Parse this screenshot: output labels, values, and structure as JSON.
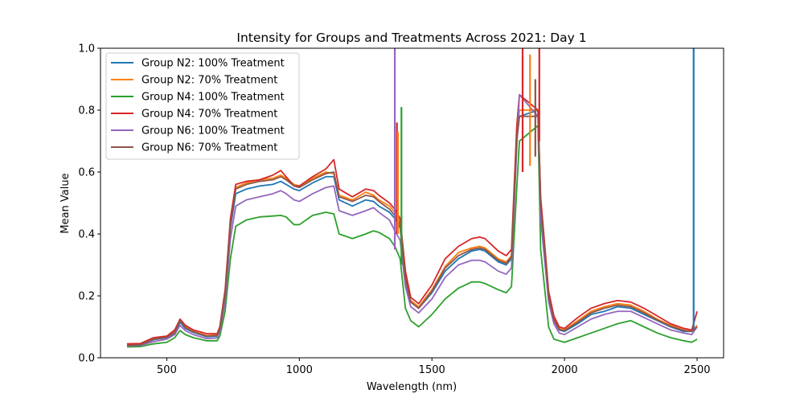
{
  "chart_data": {
    "type": "line",
    "title": "Intensity for Groups and Treatments Across 2021: Day 1",
    "xlabel": "Wavelength (nm)",
    "ylabel": "Mean Value",
    "xlim": [
      250,
      2600
    ],
    "ylim": [
      0,
      1.0
    ],
    "xticks": [
      500,
      1000,
      1500,
      2000,
      2500
    ],
    "xtick_labels": [
      "500",
      "1000",
      "1500",
      "2000",
      "2500"
    ],
    "yticks": [
      0.0,
      0.2,
      0.4,
      0.6,
      0.8,
      1.0
    ],
    "ytick_labels": [
      "0.0",
      "0.2",
      "0.4",
      "0.6",
      "0.8",
      "1.0"
    ],
    "grid": false,
    "legend_position": "top-left",
    "x": [
      350,
      400,
      450,
      500,
      530,
      550,
      570,
      600,
      650,
      690,
      700,
      720,
      740,
      760,
      800,
      850,
      900,
      930,
      950,
      980,
      1000,
      1050,
      1100,
      1130,
      1150,
      1200,
      1250,
      1280,
      1300,
      1340,
      1360,
      1380,
      1400,
      1420,
      1450,
      1500,
      1550,
      1600,
      1650,
      1680,
      1700,
      1750,
      1780,
      1800,
      1820,
      1830,
      1900,
      1910,
      1940,
      1960,
      1980,
      2000,
      2050,
      2100,
      2150,
      2200,
      2250,
      2300,
      2350,
      2400,
      2450,
      2480,
      2500
    ],
    "series": [
      {
        "name": "Group N2: 100% Treatment",
        "color": "#1f77b4",
        "values": [
          0.04,
          0.042,
          0.058,
          0.065,
          0.08,
          0.115,
          0.095,
          0.082,
          0.068,
          0.07,
          0.09,
          0.2,
          0.42,
          0.53,
          0.545,
          0.555,
          0.56,
          0.57,
          0.56,
          0.545,
          0.54,
          0.565,
          0.585,
          0.585,
          0.51,
          0.49,
          0.51,
          0.505,
          0.49,
          0.47,
          0.45,
          0.42,
          0.25,
          0.18,
          0.16,
          0.21,
          0.28,
          0.32,
          0.345,
          0.35,
          0.345,
          0.31,
          0.3,
          0.32,
          0.7,
          0.78,
          0.8,
          0.5,
          0.2,
          0.12,
          0.09,
          0.085,
          0.11,
          0.14,
          0.15,
          0.165,
          0.16,
          0.14,
          0.12,
          0.1,
          0.085,
          0.085,
          0.1
        ]
      },
      {
        "name": "Group N2: 70% Treatment",
        "color": "#ff7f0e",
        "values": [
          0.04,
          0.042,
          0.06,
          0.068,
          0.085,
          0.122,
          0.1,
          0.085,
          0.072,
          0.074,
          0.095,
          0.21,
          0.44,
          0.55,
          0.565,
          0.575,
          0.58,
          0.59,
          0.58,
          0.56,
          0.555,
          0.58,
          0.6,
          0.595,
          0.525,
          0.51,
          0.535,
          0.525,
          0.51,
          0.49,
          0.47,
          0.44,
          0.26,
          0.185,
          0.165,
          0.22,
          0.295,
          0.34,
          0.355,
          0.36,
          0.355,
          0.32,
          0.31,
          0.33,
          0.72,
          0.8,
          0.8,
          0.51,
          0.205,
          0.125,
          0.095,
          0.09,
          0.12,
          0.15,
          0.165,
          0.175,
          0.17,
          0.15,
          0.125,
          0.105,
          0.09,
          0.085,
          0.105
        ]
      },
      {
        "name": "Group N4: 100% Treatment",
        "color": "#2ca02c",
        "values": [
          0.035,
          0.036,
          0.045,
          0.05,
          0.065,
          0.088,
          0.075,
          0.065,
          0.055,
          0.055,
          0.07,
          0.15,
          0.32,
          0.425,
          0.445,
          0.455,
          0.458,
          0.46,
          0.455,
          0.43,
          0.43,
          0.46,
          0.47,
          0.465,
          0.4,
          0.385,
          0.4,
          0.41,
          0.405,
          0.385,
          0.36,
          0.32,
          0.16,
          0.12,
          0.1,
          0.14,
          0.19,
          0.225,
          0.245,
          0.245,
          0.24,
          0.22,
          0.21,
          0.23,
          0.55,
          0.7,
          0.75,
          0.35,
          0.1,
          0.06,
          0.055,
          0.05,
          0.065,
          0.08,
          0.095,
          0.11,
          0.12,
          0.1,
          0.08,
          0.065,
          0.055,
          0.05,
          0.06
        ]
      },
      {
        "name": "Group N4: 70% Treatment",
        "color": "#d62728",
        "values": [
          0.045,
          0.046,
          0.065,
          0.07,
          0.09,
          0.125,
          0.105,
          0.09,
          0.078,
          0.078,
          0.1,
          0.22,
          0.45,
          0.56,
          0.57,
          0.575,
          0.59,
          0.605,
          0.585,
          0.555,
          0.555,
          0.585,
          0.61,
          0.64,
          0.545,
          0.52,
          0.545,
          0.54,
          0.525,
          0.5,
          0.48,
          0.45,
          0.28,
          0.195,
          0.175,
          0.235,
          0.32,
          0.36,
          0.385,
          0.39,
          0.385,
          0.345,
          0.33,
          0.35,
          0.75,
          0.85,
          0.8,
          0.52,
          0.215,
          0.135,
          0.1,
          0.095,
          0.13,
          0.16,
          0.175,
          0.185,
          0.18,
          0.16,
          0.135,
          0.11,
          0.095,
          0.09,
          0.15
        ]
      },
      {
        "name": "Group N6: 100% Treatment",
        "color": "#9467bd",
        "values": [
          0.038,
          0.04,
          0.052,
          0.06,
          0.075,
          0.105,
          0.088,
          0.075,
          0.062,
          0.064,
          0.085,
          0.18,
          0.385,
          0.49,
          0.51,
          0.52,
          0.53,
          0.54,
          0.53,
          0.51,
          0.505,
          0.53,
          0.55,
          0.555,
          0.475,
          0.46,
          0.475,
          0.485,
          0.47,
          0.445,
          0.41,
          0.38,
          0.23,
          0.165,
          0.145,
          0.19,
          0.26,
          0.3,
          0.315,
          0.315,
          0.31,
          0.28,
          0.27,
          0.29,
          0.68,
          0.85,
          0.78,
          0.45,
          0.18,
          0.11,
          0.08,
          0.075,
          0.1,
          0.125,
          0.14,
          0.15,
          0.15,
          0.13,
          0.11,
          0.09,
          0.08,
          0.075,
          0.1
        ]
      },
      {
        "name": "Group N6: 70% Treatment",
        "color": "#8c564b",
        "values": [
          0.04,
          0.042,
          0.06,
          0.066,
          0.082,
          0.12,
          0.098,
          0.084,
          0.07,
          0.072,
          0.093,
          0.205,
          0.43,
          0.545,
          0.56,
          0.57,
          0.575,
          0.585,
          0.575,
          0.555,
          0.55,
          0.575,
          0.595,
          0.6,
          0.52,
          0.505,
          0.525,
          0.52,
          0.505,
          0.48,
          0.46,
          0.43,
          0.255,
          0.18,
          0.16,
          0.215,
          0.29,
          0.33,
          0.35,
          0.355,
          0.35,
          0.315,
          0.305,
          0.325,
          0.71,
          0.78,
          0.78,
          0.5,
          0.2,
          0.122,
          0.092,
          0.088,
          0.115,
          0.145,
          0.16,
          0.17,
          0.165,
          0.145,
          0.122,
          0.102,
          0.088,
          0.085,
          0.1
        ]
      }
    ],
    "spikes": [
      {
        "series": "Group N6: 100% Treatment",
        "x": 1360,
        "y_from": 0.35,
        "y_to": 1.0
      },
      {
        "series": "Group N4: 70% Treatment",
        "x": 1368,
        "y_from": 0.4,
        "y_to": 0.76
      },
      {
        "series": "Group N2: 70% Treatment",
        "x": 1372,
        "y_from": 0.4,
        "y_to": 0.73
      },
      {
        "series": "Group N4: 100% Treatment",
        "x": 1385,
        "y_from": 0.3,
        "y_to": 0.81
      },
      {
        "series": "Group N4: 70% Treatment",
        "x": 1842,
        "y_from": 0.6,
        "y_to": 1.0
      },
      {
        "series": "Group N2: 70% Treatment",
        "x": 1870,
        "y_from": 0.62,
        "y_to": 0.98
      },
      {
        "series": "Group N6: 70% Treatment",
        "x": 1890,
        "y_from": 0.65,
        "y_to": 0.9
      },
      {
        "series": "Group N4: 70% Treatment",
        "x": 1905,
        "y_from": 0.7,
        "y_to": 1.0
      },
      {
        "series": "Group N2: 100% Treatment",
        "x": 2487,
        "y_from": 0.09,
        "y_to": 1.0
      }
    ]
  }
}
